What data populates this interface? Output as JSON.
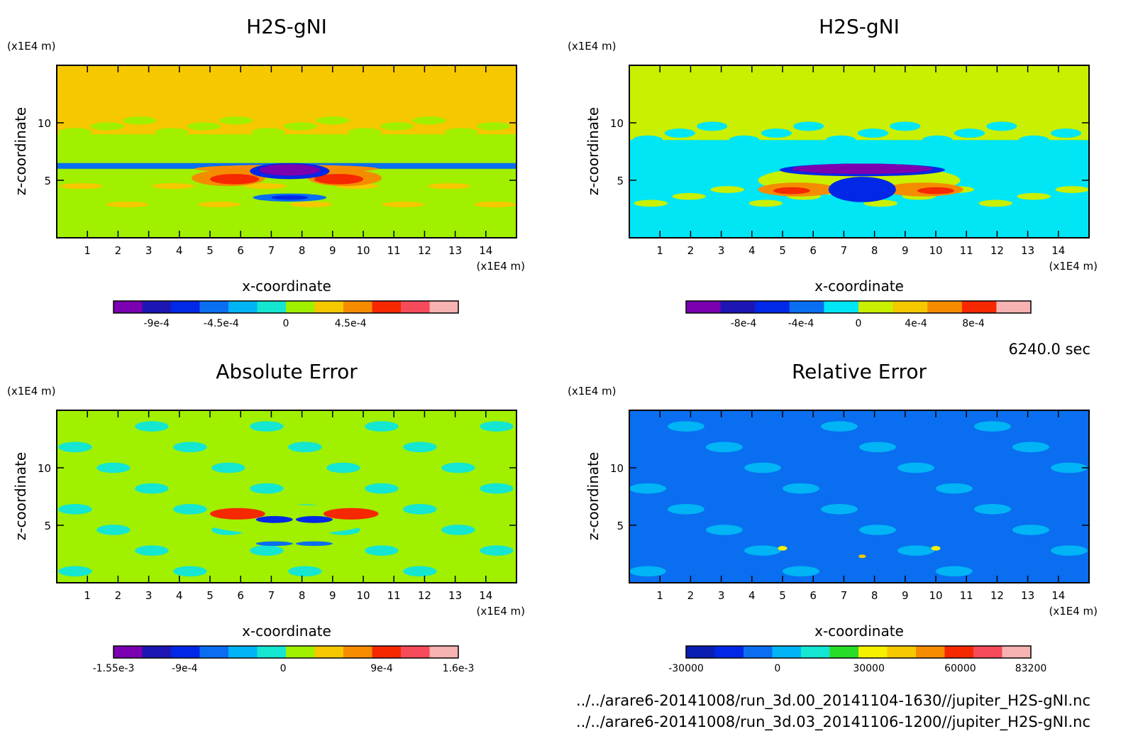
{
  "chart_data": [
    {
      "type": "heatmap",
      "title": "H2S-gNI",
      "xlabel": "x-coordinate",
      "ylabel": "z-coordinate",
      "x_unit": "(x1E4 m)",
      "y_unit": "(x1E4 m)",
      "xlim": [
        0,
        15
      ],
      "ylim": [
        0,
        15
      ],
      "x_ticks": [
        1,
        2,
        3,
        4,
        5,
        6,
        7,
        8,
        9,
        10,
        11,
        12,
        13,
        14
      ],
      "y_ticks": [
        5,
        10
      ],
      "colorbar": {
        "colors": [
          "#7a00b0",
          "#1e16b4",
          "#0028e6",
          "#0a6ef0",
          "#00b4f5",
          "#14e6d2",
          "#a0f000",
          "#f5c800",
          "#f58c00",
          "#f52800",
          "#f54b5a",
          "#f7b2b2"
        ],
        "tick_labels": [
          "-9e-4",
          "-4.5e-4",
          "0",
          "4.5e-4"
        ],
        "tick_values": [
          -0.0009,
          -0.00045,
          0,
          0.00045
        ],
        "range": [
          -0.0012,
          0.0012
        ]
      },
      "field_summary": {
        "background": "#f5c800",
        "notes": [
          "orange upper layer above z≈9",
          "green band around z≈7-9",
          "blue layer at z≈6 across domain",
          "purple core near x≈7-9, z≈5.5-6",
          "red lobes near x≈5-10, z≈5"
        ]
      }
    },
    {
      "type": "heatmap",
      "title": "H2S-gNI",
      "xlabel": "x-coordinate",
      "ylabel": "z-coordinate",
      "x_unit": "(x1E4 m)",
      "y_unit": "(x1E4 m)",
      "xlim": [
        0,
        15
      ],
      "ylim": [
        0,
        15
      ],
      "x_ticks": [
        1,
        2,
        3,
        4,
        5,
        6,
        7,
        8,
        9,
        10,
        11,
        12,
        13,
        14
      ],
      "y_ticks": [
        5,
        10
      ],
      "colorbar": {
        "colors": [
          "#7a00b0",
          "#1e16b4",
          "#0028e6",
          "#0a6ef0",
          "#00e6f5",
          "#c8f000",
          "#f5c800",
          "#f58c00",
          "#f52800",
          "#f7b2b2"
        ],
        "tick_labels": [
          "-8e-4",
          "-4e-4",
          "0",
          "4e-4",
          "8e-4"
        ],
        "tick_values": [
          -0.0008,
          -0.0004,
          0,
          0.0004,
          0.0008
        ],
        "range": [
          -0.0012,
          0.0012
        ]
      },
      "field_summary": {
        "background": "#c8f000",
        "notes": [
          "yellow-green upper layer",
          "cyan lower region below z≈8",
          "purple core near x≈6.5-10, z≈5.5-6",
          "blue core x≈7-9, z≈3-5",
          "red-orange lobes near x≈5-11, z≈4-5"
        ]
      }
    },
    {
      "type": "heatmap",
      "title": "Absolute Error",
      "xlabel": "x-coordinate",
      "ylabel": "z-coordinate",
      "x_unit": "(x1E4 m)",
      "y_unit": "(x1E4 m)",
      "xlim": [
        0,
        15
      ],
      "ylim": [
        0,
        15
      ],
      "x_ticks": [
        1,
        2,
        3,
        4,
        5,
        6,
        7,
        8,
        9,
        10,
        11,
        12,
        13,
        14
      ],
      "y_ticks": [
        5,
        10
      ],
      "colorbar": {
        "colors": [
          "#7a00b0",
          "#1e16b4",
          "#0028e6",
          "#0a6ef0",
          "#00b4f5",
          "#14e6d2",
          "#a0f000",
          "#f5c800",
          "#f58c00",
          "#f52800",
          "#f54b5a",
          "#f7b2b2"
        ],
        "tick_labels": [
          "-1.55e-3",
          "-9e-4",
          "0",
          "9e-4",
          "1.6e-3"
        ],
        "tick_values": [
          -0.00155,
          -0.0009,
          0,
          0.0009,
          0.0016
        ],
        "range": [
          -0.00155,
          0.0016
        ]
      },
      "field_summary": {
        "background": "#a0f000",
        "notes": [
          "mottled turquoise/green field",
          "red lobes at x≈5.5-6.5 and x≈9-10, z≈6",
          "blue pairs near x≈7-9, z≈5-6 and z≈3.5-4"
        ]
      }
    },
    {
      "type": "heatmap",
      "title": "Relative Error",
      "xlabel": "x-coordinate",
      "ylabel": "z-coordinate",
      "x_unit": "(x1E4 m)",
      "y_unit": "(x1E4 m)",
      "xlim": [
        0,
        15
      ],
      "ylim": [
        0,
        15
      ],
      "x_ticks": [
        1,
        2,
        3,
        4,
        5,
        6,
        7,
        8,
        9,
        10,
        11,
        12,
        13,
        14
      ],
      "y_ticks": [
        5,
        10
      ],
      "colorbar": {
        "colors": [
          "#0a1eb4",
          "#0028e6",
          "#0a6ef0",
          "#00b4f5",
          "#14e6d2",
          "#28dc28",
          "#f5f000",
          "#f5c800",
          "#f58c00",
          "#f52800",
          "#f54b5a",
          "#f7b2b2"
        ],
        "tick_labels": [
          "-30000",
          "0",
          "30000",
          "60000",
          "83200"
        ],
        "tick_values": [
          -30000,
          0,
          30000,
          60000,
          83200
        ],
        "range": [
          -30000,
          83200
        ]
      },
      "field_summary": {
        "background": "#0a6ef0",
        "notes": [
          "blue mottled field",
          "tiny yellow/red spots near x≈5, z≈3; x≈7.5, z≈2.3; x≈10, z≈3"
        ]
      }
    }
  ],
  "time_label": "6240.0 sec",
  "footer": {
    "line1": "../../arare6-20141008/run_3d.00_20141104-1630//jupiter_H2S-gNI.nc",
    "line2": "../../arare6-20141008/run_3d.03_20141106-1200//jupiter_H2S-gNI.nc"
  }
}
